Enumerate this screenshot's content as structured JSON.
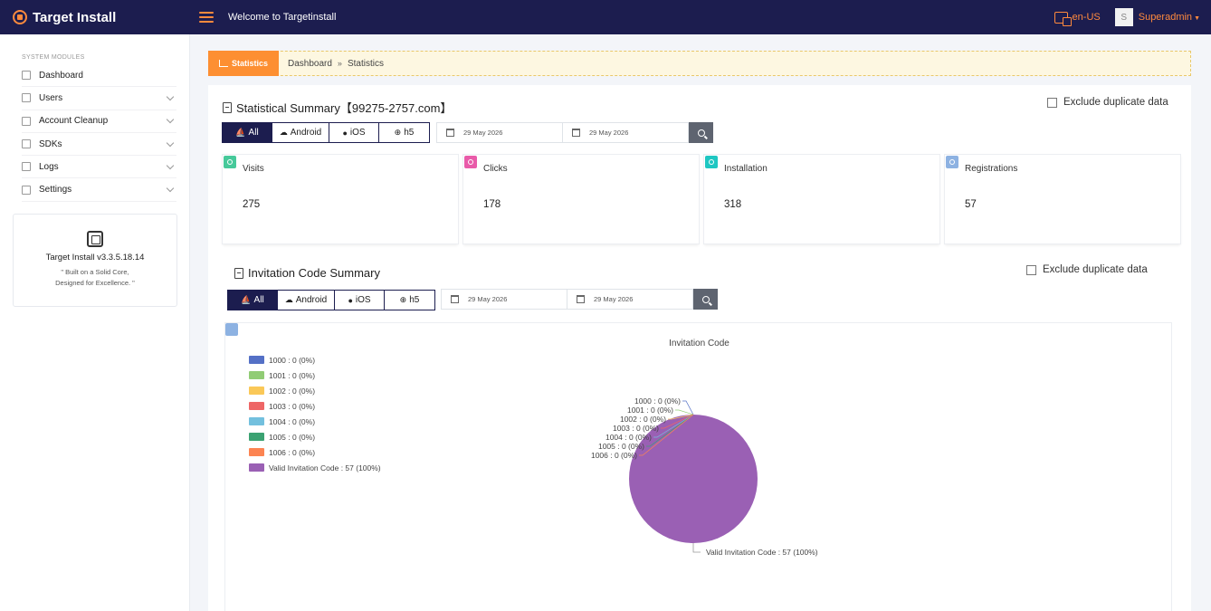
{
  "topbar": {
    "brand": "Target Install",
    "welcome": "Welcome to Targetinstall",
    "language": "en-US",
    "avatar_initial": "S",
    "user": "Superadmin"
  },
  "sidebar": {
    "section_label": "SYSTEM MODULES",
    "items": [
      {
        "label": "Dashboard",
        "expandable": false
      },
      {
        "label": "Users",
        "expandable": true
      },
      {
        "label": "Account Cleanup",
        "expandable": true
      },
      {
        "label": "SDKs",
        "expandable": true
      },
      {
        "label": "Logs",
        "expandable": true
      },
      {
        "label": "Settings",
        "expandable": true
      }
    ],
    "version_card": {
      "title": "Target Install v3.3.5.18.14",
      "line1": "\" Built on a Solid Core,",
      "line2": "Designed for Excellence. \""
    }
  },
  "breadcrumb": {
    "tab_label": "Statistics",
    "home": "Dashboard",
    "separator": "»",
    "current": "Statistics"
  },
  "statistical_summary": {
    "title": "Statistical Summary【99275-2757.com】",
    "exclude_label": "Exclude duplicate data",
    "filters": [
      {
        "label": "All",
        "glyph": "⛵",
        "active": true
      },
      {
        "label": "Android",
        "glyph": "☁",
        "active": false
      },
      {
        "label": "iOS",
        "glyph": "●",
        "active": false
      },
      {
        "label": "h5",
        "glyph": "⊕",
        "active": false
      }
    ],
    "date_start": "29 May 2026",
    "date_end": "29 May 2026",
    "cards": [
      {
        "label": "Visits",
        "value": "275",
        "color": "#46c99a"
      },
      {
        "label": "Clicks",
        "value": "178",
        "color": "#e95ba9"
      },
      {
        "label": "Installation",
        "value": "318",
        "color": "#1fc7c2"
      },
      {
        "label": "Registrations",
        "value": "57",
        "color": "#8db2e2"
      }
    ]
  },
  "invitation_summary": {
    "title": "Invitation Code Summary",
    "exclude_label": "Exclude duplicate data",
    "filters": [
      {
        "label": "All",
        "glyph": "⛵",
        "active": true
      },
      {
        "label": "Android",
        "glyph": "☁",
        "active": false
      },
      {
        "label": "iOS",
        "glyph": "●",
        "active": false
      },
      {
        "label": "h5",
        "glyph": "⊕",
        "active": false
      }
    ],
    "date_start": "29 May 2026",
    "date_end": "29 May 2026"
  },
  "chart_data": {
    "type": "pie",
    "title": "Invitation Code",
    "legend_position": "top-left",
    "series": [
      {
        "name": "1000",
        "value": 0,
        "percent": "0%",
        "color": "#5470c6"
      },
      {
        "name": "1001",
        "value": 0,
        "percent": "0%",
        "color": "#91cc75"
      },
      {
        "name": "1002",
        "value": 0,
        "percent": "0%",
        "color": "#fac858"
      },
      {
        "name": "1003",
        "value": 0,
        "percent": "0%",
        "color": "#ee6666"
      },
      {
        "name": "1004",
        "value": 0,
        "percent": "0%",
        "color": "#73c0de"
      },
      {
        "name": "1005",
        "value": 0,
        "percent": "0%",
        "color": "#3ba272"
      },
      {
        "name": "1006",
        "value": 0,
        "percent": "0%",
        "color": "#fc8452"
      },
      {
        "name": "Valid Invitation Code",
        "value": 57,
        "percent": "100%",
        "color": "#9a60b4"
      }
    ]
  }
}
